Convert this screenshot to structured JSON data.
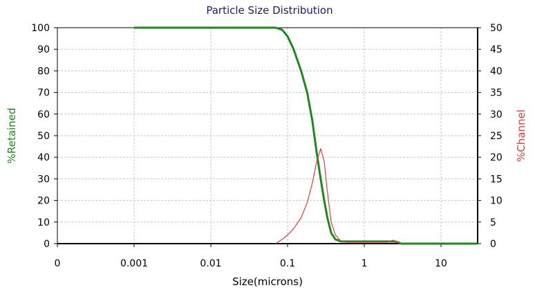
{
  "chart_data": {
    "type": "line",
    "title": "Particle Size Distribution",
    "xlabel": "Size(microns)",
    "ylabel_left": "%Retained",
    "ylabel_right": "%Channel",
    "x_tick_labels": [
      "0",
      "0.001",
      "0.01",
      "0.1",
      "1",
      "10"
    ],
    "x_scale": "log",
    "xlim": [
      0.0001,
      30
    ],
    "ylim_left": [
      0,
      100
    ],
    "ylim_right": [
      0,
      50
    ],
    "y_left_ticks": [
      0,
      10,
      20,
      30,
      40,
      50,
      60,
      70,
      80,
      90,
      100
    ],
    "y_right_ticks": [
      0,
      5,
      10,
      15,
      20,
      25,
      30,
      35,
      40,
      45,
      50
    ],
    "grid": true,
    "colors": {
      "retained": "#1a8a1a",
      "channel": "#e83a3a",
      "title": "#1a1a6e",
      "ylabel_left": "#1a8a1a",
      "ylabel_right": "#e83a3a"
    },
    "series": [
      {
        "name": "%Retained",
        "axis": "left",
        "x": [
          0.001,
          0.01,
          0.05,
          0.07,
          0.085,
          0.1,
          0.12,
          0.15,
          0.18,
          0.21,
          0.24,
          0.27,
          0.3,
          0.33,
          0.37,
          0.42,
          0.5,
          0.6,
          1,
          2,
          2.5,
          2.8,
          3,
          5,
          10,
          30
        ],
        "values": [
          100,
          100,
          100,
          100,
          99,
          96,
          90,
          80,
          70,
          57,
          42,
          30,
          20,
          12,
          5,
          2,
          1,
          1,
          1,
          1,
          1,
          0.5,
          0,
          0,
          0,
          0
        ]
      },
      {
        "name": "%Channel",
        "axis": "right",
        "x": [
          0.07,
          0.085,
          0.1,
          0.12,
          0.15,
          0.18,
          0.21,
          0.24,
          0.27,
          0.3,
          0.33,
          0.37,
          0.42,
          0.5,
          0.6,
          1,
          2,
          2.4,
          2.7,
          3
        ],
        "values": [
          0,
          1,
          2,
          3.5,
          6,
          9.5,
          14,
          19,
          22,
          19,
          12,
          5,
          2,
          0.5,
          0.3,
          0.3,
          0.3,
          0.8,
          0.4,
          0
        ]
      }
    ]
  }
}
